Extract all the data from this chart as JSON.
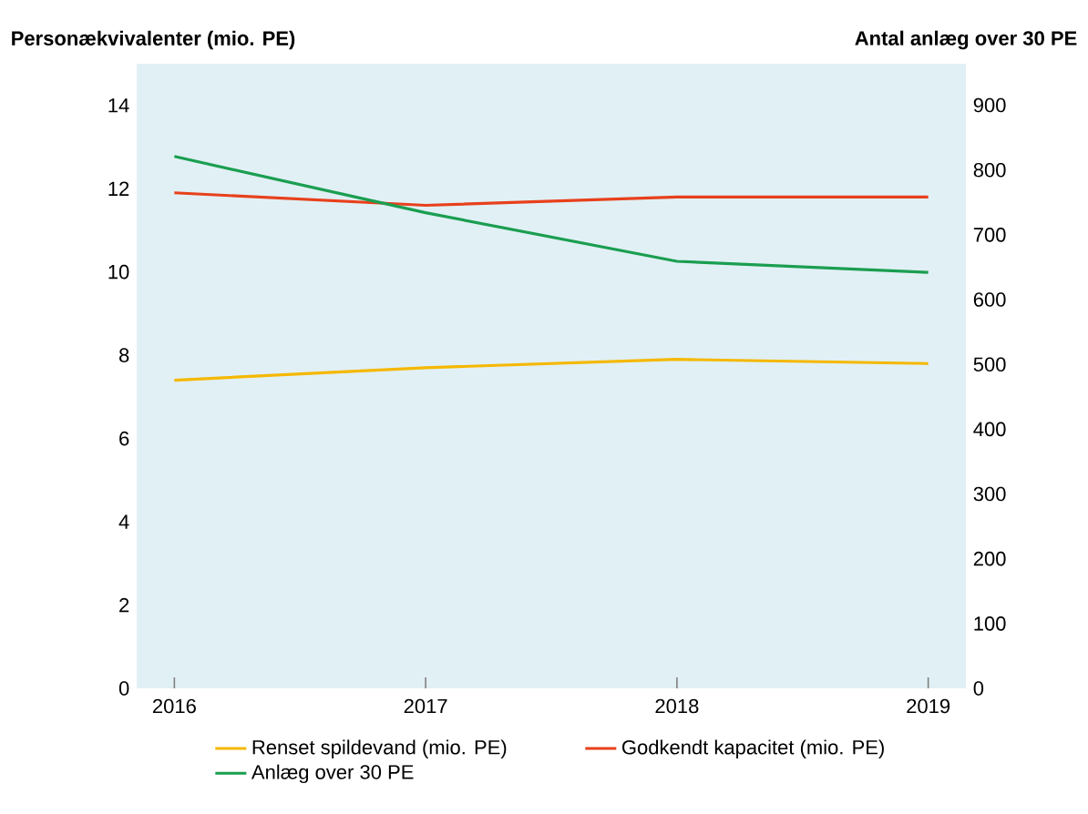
{
  "chart_data": {
    "type": "line",
    "ylabel": "Personækvivalenter (mio. PE)",
    "y2label": "Antal anlæg over 30 PE",
    "x": [
      2016,
      2017,
      2018,
      2019
    ],
    "xlim": [
      2015.85,
      2019.15
    ],
    "xticks": [
      2016,
      2017,
      2018,
      2019
    ],
    "ylim": [
      0,
      15
    ],
    "yticks": [
      0,
      2,
      4,
      6,
      8,
      10,
      12,
      14
    ],
    "y2lim": [
      0,
      964
    ],
    "y2ticks": [
      0,
      100,
      200,
      300,
      400,
      500,
      600,
      700,
      800,
      900
    ],
    "series": [
      {
        "name": "Renset spildevand (mio. PE)",
        "color": "#f5b800",
        "values": [
          7.4,
          7.7,
          7.9,
          7.8
        ]
      },
      {
        "name": "Godkendt kapacitet (mio. PE)",
        "color": "#e8401c",
        "values": [
          11.9,
          11.6,
          11.8,
          11.8
        ]
      },
      {
        "name": "Anlæg over 30 PE",
        "color": "#1a9e50",
        "axis": "y2",
        "values": [
          821,
          734,
          659,
          642
        ]
      }
    ],
    "grid": false,
    "legend": "bottom",
    "marker": "none",
    "line_style": "solid"
  }
}
